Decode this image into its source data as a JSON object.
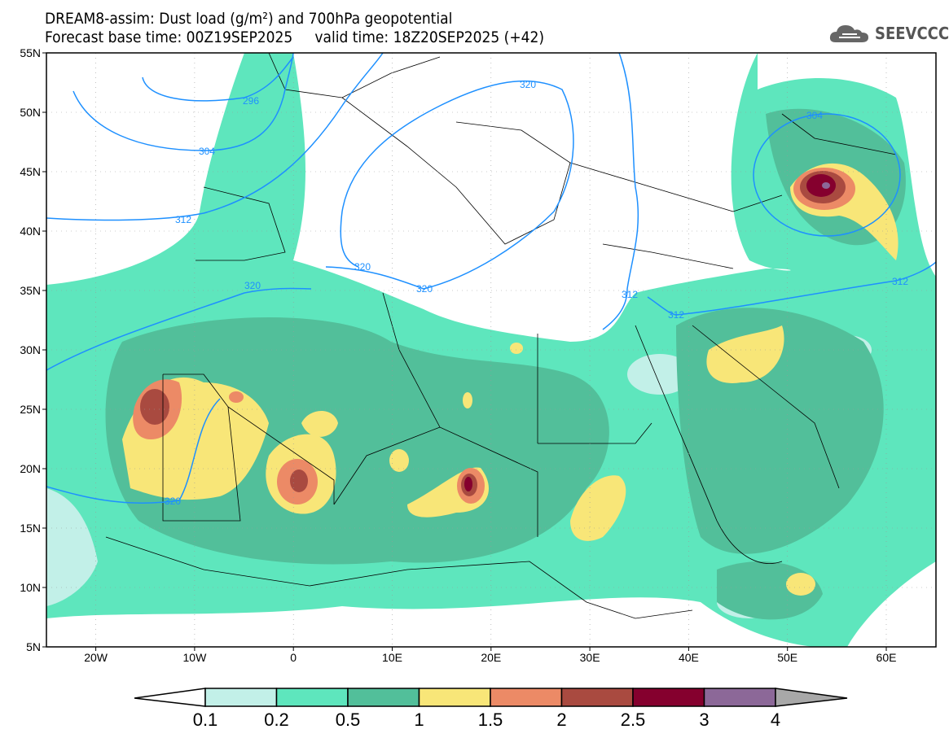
{
  "header": {
    "title": "DREAM8-assim: Dust load (g/m²) and 700hPa geopotential",
    "subtitle": "Forecast base time: 00Z19SEP2025     valid time: 18Z20SEP2025 (+42)"
  },
  "logo": {
    "text": "SEEVCCC",
    "icon": "cloud-icon"
  },
  "map": {
    "lat_labels": [
      "55N",
      "50N",
      "45N",
      "40N",
      "35N",
      "30N",
      "25N",
      "20N",
      "15N",
      "10N",
      "5N"
    ],
    "lon_labels": [
      "20W",
      "10W",
      "0",
      "10E",
      "20E",
      "30E",
      "40E",
      "50E",
      "60E"
    ],
    "contour_labels": [
      "296",
      "304",
      "312",
      "320",
      "320",
      "320",
      "320",
      "312",
      "312",
      "304",
      "312"
    ]
  },
  "colorbar": {
    "ticks": [
      "0.1",
      "0.2",
      "0.5",
      "1",
      "1.5",
      "2",
      "2.5",
      "3",
      "4"
    ],
    "colors": [
      "#c2f0e8",
      "#5ee6bd",
      "#52bf9a",
      "#f8e678",
      "#ec8a66",
      "#a94a40",
      "#85002e",
      "#8c6898"
    ],
    "under_color": "#ffffff",
    "over_color": "#a8a8a8"
  }
}
